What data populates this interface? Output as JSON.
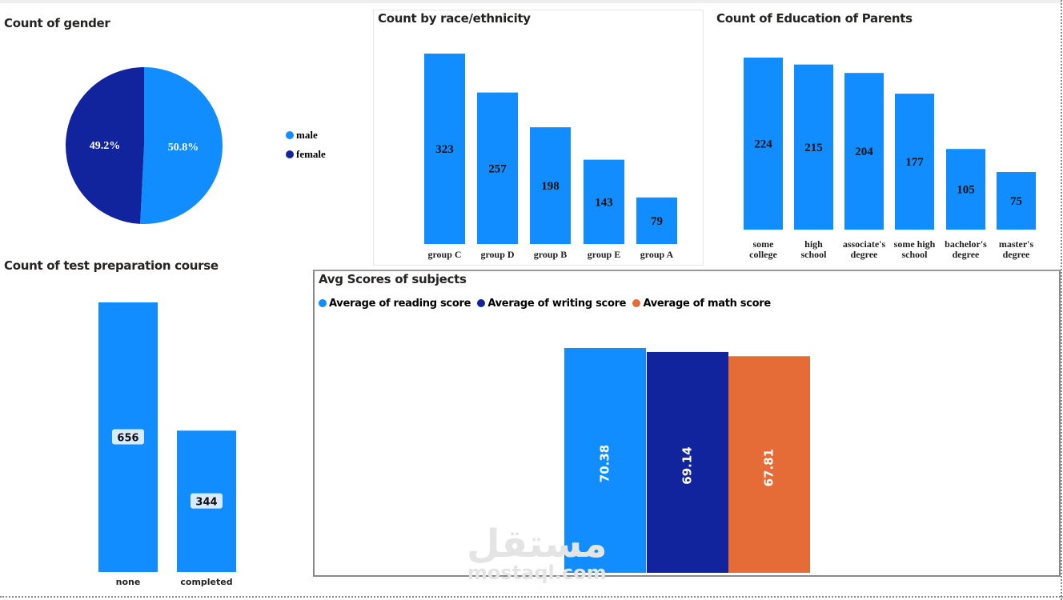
{
  "colors": {
    "blue": "#118DFF",
    "navy": "#12239E",
    "orange": "#E66C37"
  },
  "watermark": {
    "arabic": "مستقل",
    "latin": "mostaql.com"
  },
  "chart_data": [
    {
      "id": "gender",
      "type": "pie",
      "title": "Count of gender",
      "categories": [
        "male",
        "female"
      ],
      "values": [
        50.8,
        49.2
      ],
      "labels": [
        "50.8%",
        "49.2%"
      ],
      "legend": "right"
    },
    {
      "id": "race",
      "type": "bar",
      "title": "Count by race/ethnicity",
      "categories": [
        "group C",
        "group D",
        "group B",
        "group E",
        "group A"
      ],
      "values": [
        323,
        257,
        198,
        143,
        79
      ]
    },
    {
      "id": "education",
      "type": "bar",
      "title": "Count of Education of Parents",
      "categories": [
        [
          "some",
          "college"
        ],
        [
          "high",
          "school"
        ],
        [
          "associate's",
          "degree"
        ],
        [
          "some high",
          "school"
        ],
        [
          "bachelor's",
          "degree"
        ],
        [
          "master's",
          "degree"
        ]
      ],
      "values": [
        224,
        215,
        204,
        177,
        105,
        75
      ]
    },
    {
      "id": "prep",
      "type": "bar",
      "title": "Count of test preparation course",
      "categories": [
        "none",
        "completed"
      ],
      "values": [
        656,
        344
      ]
    },
    {
      "id": "scores",
      "type": "bar",
      "title": "Avg Scores of subjects",
      "series": [
        {
          "name": "Average of reading score",
          "value": 70.38
        },
        {
          "name": "Average of writing score",
          "value": 69.14
        },
        {
          "name": "Average of math score",
          "value": 67.81
        }
      ],
      "legend": "top-left"
    }
  ]
}
